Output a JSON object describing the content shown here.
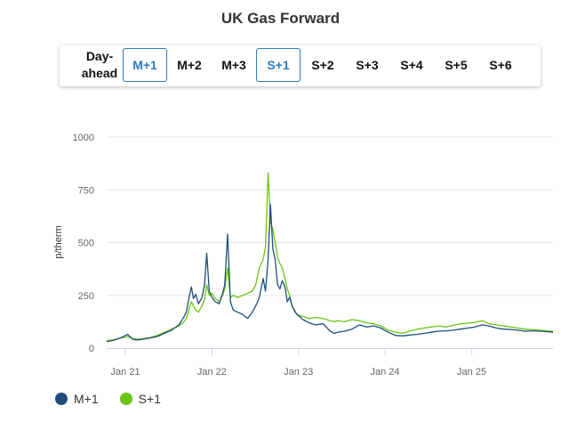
{
  "header": {
    "title": "UK Gas Forward"
  },
  "tabs": [
    {
      "label": "Day-ahead",
      "active": false
    },
    {
      "label": "M+1",
      "active": true
    },
    {
      "label": "M+2",
      "active": false
    },
    {
      "label": "M+3",
      "active": false
    },
    {
      "label": "S+1",
      "active": true
    },
    {
      "label": "S+2",
      "active": false
    },
    {
      "label": "S+3",
      "active": false
    },
    {
      "label": "S+4",
      "active": false
    },
    {
      "label": "S+5",
      "active": false
    },
    {
      "label": "S+6",
      "active": false
    }
  ],
  "colors": {
    "active_tab": "#2b7bb9",
    "grid": "#e6e6e6",
    "axis": "#ccd6eb"
  },
  "legend": [
    {
      "name": "M+1",
      "color": "#1f4e79"
    },
    {
      "name": "S+1",
      "color": "#6cc417"
    }
  ],
  "chart_data": {
    "type": "line",
    "title": "UK Gas Forward",
    "xlabel": "",
    "ylabel": "p/therm",
    "ylim": [
      0,
      1000
    ],
    "yticks": [
      "0",
      "250",
      "500",
      "750",
      "1000"
    ],
    "xlim": [
      "2020-10-14",
      "2025-12-10"
    ],
    "xticks": [
      {
        "label": "Jan 21",
        "date": "2021-01-01"
      },
      {
        "label": "Jan 22",
        "date": "2022-01-01"
      },
      {
        "label": "Jan 23",
        "date": "2023-01-01"
      },
      {
        "label": "Jan 24",
        "date": "2024-01-01"
      },
      {
        "label": "Jan 25",
        "date": "2025-01-01"
      }
    ],
    "grid": true,
    "legend_position": "bottom-left",
    "series": [
      {
        "name": "M+1",
        "color": "#1f4e79",
        "x": [
          "2020-10-14",
          "2020-11-15",
          "2020-12-15",
          "2021-01-10",
          "2021-02-01",
          "2021-02-20",
          "2021-03-15",
          "2021-04-15",
          "2021-05-15",
          "2021-06-15",
          "2021-07-15",
          "2021-08-15",
          "2021-09-01",
          "2021-09-15",
          "2021-09-25",
          "2021-10-06",
          "2021-10-15",
          "2021-10-25",
          "2021-11-05",
          "2021-11-20",
          "2021-12-01",
          "2021-12-10",
          "2021-12-21",
          "2022-01-01",
          "2022-01-15",
          "2022-02-01",
          "2022-02-15",
          "2022-02-24",
          "2022-03-08",
          "2022-03-20",
          "2022-04-01",
          "2022-04-20",
          "2022-05-10",
          "2022-06-01",
          "2022-06-20",
          "2022-07-05",
          "2022-07-20",
          "2022-08-05",
          "2022-08-15",
          "2022-08-26",
          "2022-09-05",
          "2022-09-15",
          "2022-09-25",
          "2022-10-05",
          "2022-10-15",
          "2022-10-25",
          "2022-11-05",
          "2022-11-15",
          "2022-11-25",
          "2022-12-05",
          "2022-12-15",
          "2022-12-25",
          "2023-01-05",
          "2023-01-20",
          "2023-02-15",
          "2023-03-15",
          "2023-04-15",
          "2023-05-15",
          "2023-06-01",
          "2023-06-15",
          "2023-07-15",
          "2023-08-15",
          "2023-09-15",
          "2023-10-15",
          "2023-11-15",
          "2023-12-15",
          "2024-01-15",
          "2024-02-15",
          "2024-03-15",
          "2024-04-15",
          "2024-05-15",
          "2024-06-15",
          "2024-07-15",
          "2024-08-15",
          "2024-09-15",
          "2024-10-15",
          "2024-11-15",
          "2024-12-15",
          "2025-01-15",
          "2025-02-15",
          "2025-03-15",
          "2025-04-15",
          "2025-05-15",
          "2025-06-15",
          "2025-07-15",
          "2025-08-15",
          "2025-09-15",
          "2025-10-15",
          "2025-11-15",
          "2025-12-10"
        ],
        "values": [
          30,
          38,
          50,
          65,
          42,
          38,
          42,
          48,
          55,
          70,
          85,
          110,
          140,
          170,
          230,
          290,
          235,
          255,
          210,
          240,
          300,
          450,
          270,
          240,
          220,
          210,
          260,
          300,
          540,
          220,
          180,
          170,
          160,
          140,
          170,
          200,
          240,
          330,
          270,
          420,
          680,
          470,
          420,
          300,
          280,
          320,
          290,
          220,
          240,
          200,
          180,
          160,
          150,
          135,
          120,
          110,
          115,
          80,
          70,
          75,
          80,
          90,
          110,
          100,
          105,
          95,
          75,
          60,
          58,
          62,
          65,
          70,
          75,
          80,
          82,
          85,
          90,
          95,
          100,
          110,
          105,
          95,
          90,
          88,
          85,
          80,
          82,
          80,
          78,
          75
        ]
      },
      {
        "name": "S+1",
        "color": "#6cc417",
        "x": [
          "2020-10-14",
          "2020-11-15",
          "2020-12-15",
          "2021-01-10",
          "2021-02-01",
          "2021-02-20",
          "2021-03-15",
          "2021-04-15",
          "2021-05-15",
          "2021-06-15",
          "2021-07-15",
          "2021-08-15",
          "2021-09-01",
          "2021-09-15",
          "2021-09-25",
          "2021-10-06",
          "2021-10-15",
          "2021-10-25",
          "2021-11-05",
          "2021-11-20",
          "2021-12-01",
          "2021-12-10",
          "2021-12-21",
          "2022-01-01",
          "2022-01-15",
          "2022-02-01",
          "2022-02-15",
          "2022-02-24",
          "2022-03-08",
          "2022-03-20",
          "2022-04-01",
          "2022-04-20",
          "2022-05-10",
          "2022-06-01",
          "2022-06-20",
          "2022-07-05",
          "2022-07-20",
          "2022-08-05",
          "2022-08-15",
          "2022-08-26",
          "2022-09-05",
          "2022-09-15",
          "2022-09-25",
          "2022-10-05",
          "2022-10-15",
          "2022-10-25",
          "2022-11-05",
          "2022-11-15",
          "2022-11-25",
          "2022-12-05",
          "2022-12-15",
          "2022-12-25",
          "2023-01-05",
          "2023-01-20",
          "2023-02-15",
          "2023-03-15",
          "2023-04-15",
          "2023-05-15",
          "2023-06-01",
          "2023-06-15",
          "2023-07-15",
          "2023-08-15",
          "2023-09-15",
          "2023-10-15",
          "2023-11-15",
          "2023-12-15",
          "2024-01-15",
          "2024-02-15",
          "2024-03-15",
          "2024-04-15",
          "2024-05-15",
          "2024-06-15",
          "2024-07-15",
          "2024-08-15",
          "2024-09-15",
          "2024-10-15",
          "2024-11-15",
          "2024-12-15",
          "2025-01-15",
          "2025-02-15",
          "2025-03-15",
          "2025-04-15",
          "2025-05-15",
          "2025-06-15",
          "2025-07-15",
          "2025-08-15",
          "2025-09-15",
          "2025-10-15",
          "2025-11-15",
          "2025-12-10"
        ],
        "values": [
          35,
          40,
          48,
          55,
          45,
          42,
          45,
          50,
          60,
          75,
          90,
          105,
          120,
          140,
          175,
          220,
          200,
          180,
          170,
          200,
          230,
          300,
          250,
          260,
          235,
          220,
          250,
          280,
          380,
          240,
          250,
          240,
          250,
          260,
          270,
          300,
          380,
          420,
          480,
          830,
          600,
          560,
          500,
          430,
          400,
          380,
          330,
          280,
          250,
          200,
          175,
          160,
          155,
          150,
          140,
          145,
          140,
          130,
          125,
          130,
          125,
          135,
          130,
          120,
          115,
          105,
          85,
          75,
          70,
          80,
          90,
          95,
          100,
          105,
          100,
          108,
          115,
          118,
          122,
          130,
          115,
          110,
          105,
          100,
          95,
          90,
          88,
          85,
          82,
          80
        ]
      }
    ]
  }
}
